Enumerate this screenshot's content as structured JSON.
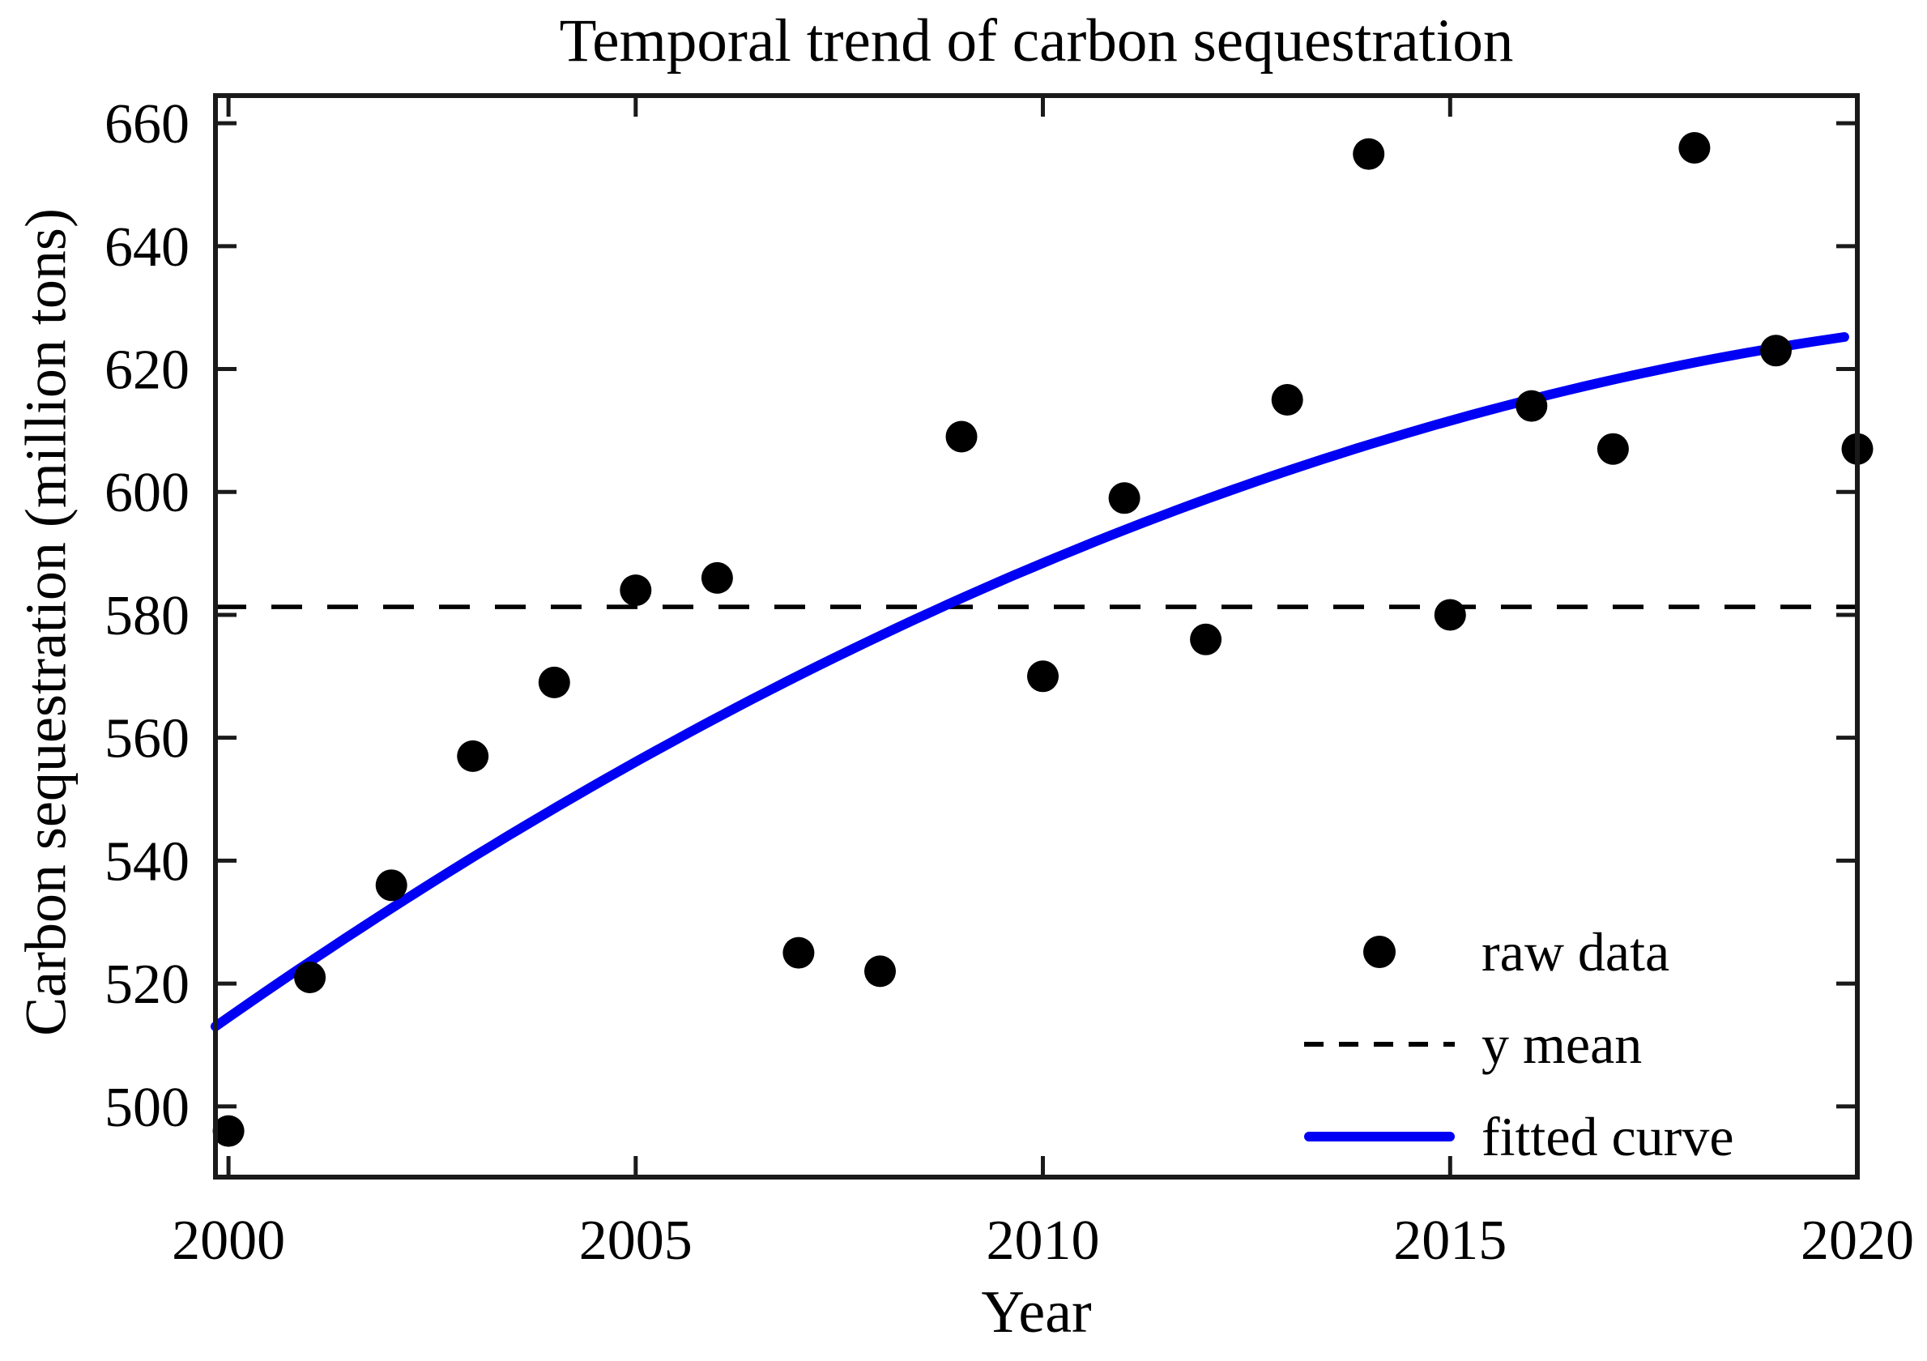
{
  "chart_data": {
    "type": "scatter",
    "title": "Temporal trend of carbon sequestration",
    "xlabel": "Year",
    "ylabel": "Carbon sequestration (million tons)",
    "xlim": [
      1999.84,
      2020
    ],
    "ylim": [
      488.5,
      664.5
    ],
    "xticks": [
      2000,
      2005,
      2010,
      2015,
      2020
    ],
    "yticks": [
      500,
      520,
      540,
      560,
      580,
      600,
      620,
      640,
      660
    ],
    "grid": false,
    "legend_position": "lower right inside",
    "x": [
      2000,
      2001,
      2002,
      2003,
      2004,
      2005,
      2006,
      2007,
      2008,
      2009,
      2010,
      2011,
      2012,
      2013,
      2014,
      2015,
      2016,
      2017,
      2018,
      2019,
      2020
    ],
    "series": [
      {
        "name": "raw data",
        "style": "black filled circle markers",
        "values": [
          496,
          521,
          536,
          557,
          569,
          584,
          586,
          525,
          522,
          609,
          570,
          599,
          576,
          615,
          655,
          580,
          614,
          607,
          656,
          623,
          607
        ]
      }
    ],
    "y_mean": 581.3,
    "fitted_curve": {
      "name": "fitted curve",
      "type": "quadratic",
      "t_ref": 2000,
      "a": 514.5,
      "b": 9.235,
      "c": -0.1842,
      "formula": "y = 514.5 + 9.235*(year-2000) - 0.1842*(year-2000)^2",
      "start_value": 514,
      "end_value": 625
    }
  },
  "legend": {
    "items": [
      {
        "label": "raw data"
      },
      {
        "label": "y mean"
      },
      {
        "label": "fitted curve"
      }
    ]
  },
  "colors": {
    "marker": "#000000",
    "mean_line": "#000000",
    "fit_line": "#0000F5",
    "axis": "#1a1a1a",
    "text": "#000000"
  }
}
